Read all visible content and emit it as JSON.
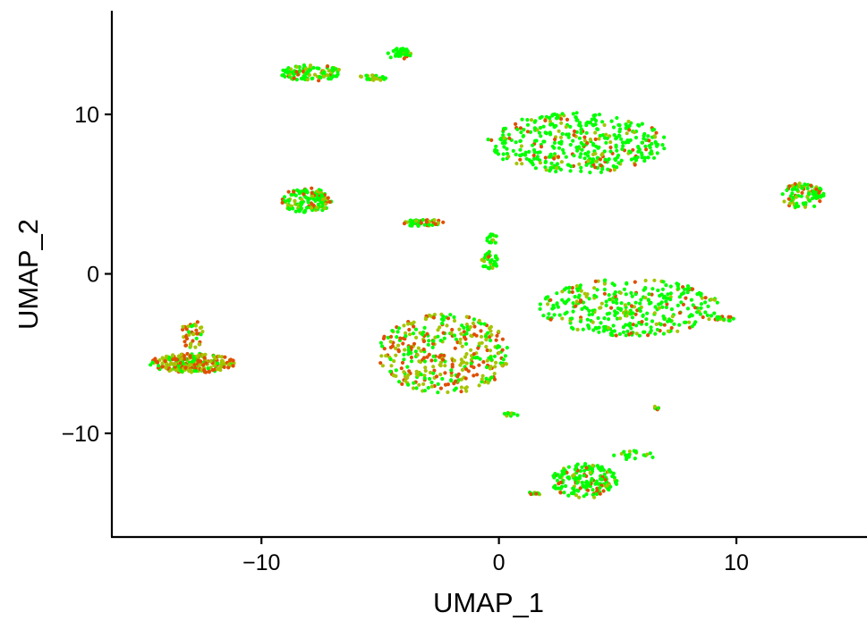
{
  "chart_data": {
    "type": "scatter",
    "title": "",
    "xlabel": "UMAP_1",
    "ylabel": "UMAP_2",
    "xlim": [
      -16.3,
      15.5
    ],
    "ylim": [
      -16.5,
      16.5
    ],
    "xticks": [
      -10,
      0,
      10
    ],
    "yticks": [
      -10,
      0,
      10
    ],
    "xtick_labels": [
      "−10",
      "0",
      "10"
    ],
    "ytick_labels": [
      "−10",
      "0",
      "10"
    ],
    "grid": false,
    "legend": "none",
    "colors": {
      "low": "#00ff00",
      "mid": "#a6c400",
      "high": "#e04e00"
    },
    "clusters": [
      {
        "id": "c1",
        "center": [
          3.3,
          8.2
        ],
        "radius": [
          3.8,
          1.9
        ],
        "n": 420,
        "high_fraction": 0.22
      },
      {
        "id": "c2",
        "center": [
          5.5,
          -2.1
        ],
        "radius": [
          3.8,
          1.8
        ],
        "n": 360,
        "high_fraction": 0.25
      },
      {
        "id": "c3",
        "center": [
          -2.3,
          -5.0
        ],
        "radius": [
          2.8,
          2.5
        ],
        "n": 380,
        "high_fraction": 0.7
      },
      {
        "id": "c4",
        "center": [
          -12.9,
          -5.6
        ],
        "radius": [
          1.8,
          0.6
        ],
        "n": 260,
        "high_fraction": 0.85
      },
      {
        "id": "c4b",
        "center": [
          -12.9,
          -3.8
        ],
        "radius": [
          0.5,
          0.9
        ],
        "n": 40,
        "high_fraction": 0.8
      },
      {
        "id": "c5",
        "center": [
          3.6,
          -13.0
        ],
        "radius": [
          1.4,
          1.1
        ],
        "n": 180,
        "high_fraction": 0.35
      },
      {
        "id": "c6",
        "center": [
          -8.1,
          4.6
        ],
        "radius": [
          1.1,
          0.8
        ],
        "n": 140,
        "high_fraction": 0.35
      },
      {
        "id": "c7",
        "center": [
          12.8,
          4.9
        ],
        "radius": [
          0.9,
          0.8
        ],
        "n": 90,
        "high_fraction": 0.35
      },
      {
        "id": "c8",
        "center": [
          -7.9,
          12.6
        ],
        "radius": [
          1.3,
          0.5
        ],
        "n": 110,
        "high_fraction": 0.3
      },
      {
        "id": "c9",
        "center": [
          -4.2,
          13.8
        ],
        "radius": [
          0.5,
          0.35
        ],
        "n": 40,
        "high_fraction": 0.2
      },
      {
        "id": "c10",
        "center": [
          -5.3,
          12.3
        ],
        "radius": [
          0.6,
          0.18
        ],
        "n": 30,
        "high_fraction": 0.2
      },
      {
        "id": "c11",
        "center": [
          -3.2,
          3.2
        ],
        "radius": [
          0.9,
          0.22
        ],
        "n": 50,
        "high_fraction": 0.5
      },
      {
        "id": "c12",
        "center": [
          -0.4,
          0.8
        ],
        "radius": [
          0.35,
          0.6
        ],
        "n": 30,
        "high_fraction": 0.4
      },
      {
        "id": "c13",
        "center": [
          -0.3,
          2.2
        ],
        "radius": [
          0.25,
          0.35
        ],
        "n": 14,
        "high_fraction": 0.3
      },
      {
        "id": "c14",
        "center": [
          9.5,
          -2.8
        ],
        "radius": [
          0.45,
          0.15
        ],
        "n": 18,
        "high_fraction": 0.5
      },
      {
        "id": "c15",
        "center": [
          6.6,
          -8.4
        ],
        "radius": [
          0.15,
          0.15
        ],
        "n": 6,
        "high_fraction": 0.3
      },
      {
        "id": "c16",
        "center": [
          0.5,
          -8.8
        ],
        "radius": [
          0.4,
          0.15
        ],
        "n": 10,
        "high_fraction": 0.5
      },
      {
        "id": "c17",
        "center": [
          1.4,
          -13.8
        ],
        "radius": [
          0.5,
          0.12
        ],
        "n": 12,
        "high_fraction": 0.4
      },
      {
        "id": "c18",
        "center": [
          5.7,
          -11.4
        ],
        "radius": [
          0.9,
          0.35
        ],
        "n": 20,
        "high_fraction": 0.2
      }
    ]
  }
}
